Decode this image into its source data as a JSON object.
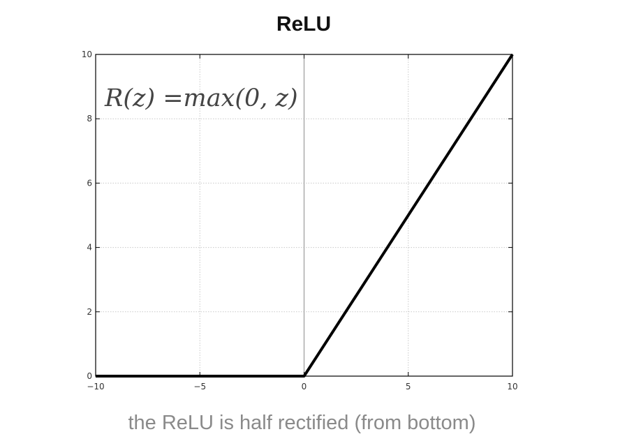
{
  "caption": "the ReLU is half rectified (from bottom)",
  "chart_data": {
    "type": "line",
    "title": "ReLU",
    "xlabel": "",
    "ylabel": "",
    "xlim": [
      -10,
      10
    ],
    "ylim": [
      0,
      10
    ],
    "x_ticks": [
      -10,
      -5,
      0,
      5,
      10
    ],
    "x_tick_labels": [
      "−10",
      "−5",
      "0",
      "5",
      "10"
    ],
    "y_ticks": [
      0,
      2,
      4,
      6,
      8,
      10
    ],
    "y_tick_labels": [
      "0",
      "2",
      "4",
      "6",
      "8",
      "10"
    ],
    "grid": true,
    "annotation": "R(z) =max(0,  z)",
    "series": [
      {
        "x": [
          -10,
          0,
          10
        ],
        "y": [
          0,
          0,
          10
        ],
        "color": "#000000"
      }
    ]
  }
}
